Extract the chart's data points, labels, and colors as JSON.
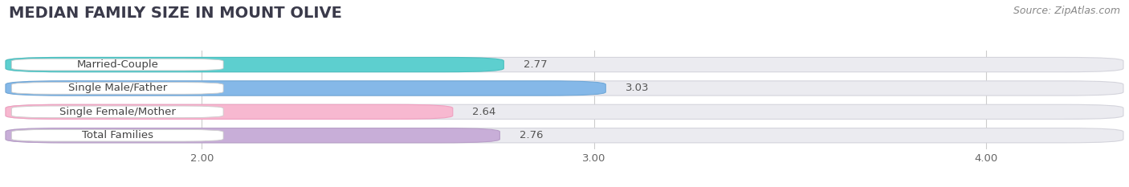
{
  "title": "MEDIAN FAMILY SIZE IN MOUNT OLIVE",
  "source": "Source: ZipAtlas.com",
  "categories": [
    "Married-Couple",
    "Single Male/Father",
    "Single Female/Mother",
    "Total Families"
  ],
  "values": [
    2.77,
    3.03,
    2.64,
    2.76
  ],
  "bar_colors": [
    "#5dcfcf",
    "#85b8e8",
    "#f7b8d0",
    "#c8aed8"
  ],
  "bar_edge_colors": [
    "#4abfbf",
    "#70a8d8",
    "#f0a0c0",
    "#b89ec8"
  ],
  "xlim_min": 1.5,
  "xlim_max": 4.35,
  "xticks": [
    2.0,
    3.0,
    4.0
  ],
  "xtick_labels": [
    "2.00",
    "3.00",
    "4.00"
  ],
  "background_color": "#ffffff",
  "bar_bg_color": "#ebebf0",
  "title_fontsize": 14,
  "source_fontsize": 9,
  "label_fontsize": 9.5,
  "value_fontsize": 9.5,
  "bar_height": 0.62,
  "figsize": [
    14.06,
    2.33
  ],
  "dpi": 100
}
